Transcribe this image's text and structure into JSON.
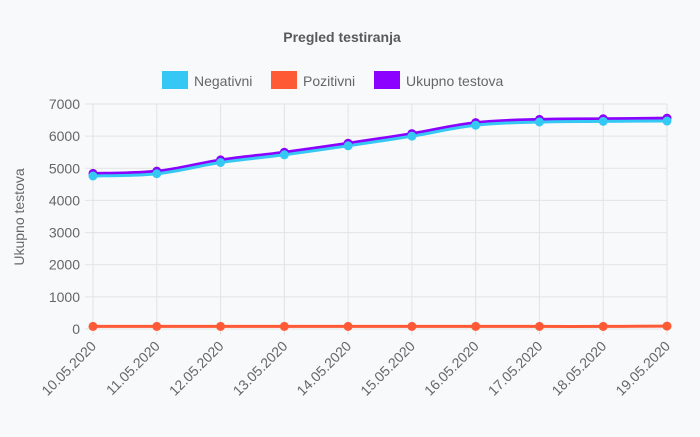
{
  "chart_data": {
    "type": "line",
    "title": "Pregled testiranja",
    "ylabel": "Ukupno testova",
    "xlabel": "",
    "categories": [
      "10.05.2020",
      "11.05.2020",
      "12.05.2020",
      "13.05.2020",
      "14.05.2020",
      "15.05.2020",
      "16.05.2020",
      "17.05.2020",
      "18.05.2020",
      "19.05.2020"
    ],
    "ylim": [
      0,
      7000
    ],
    "yticks": [
      "7000",
      "6000",
      "5000",
      "4000",
      "3000",
      "2000",
      "1000",
      "0"
    ],
    "grid": true,
    "legend_position": "top",
    "series": [
      {
        "name": "Negativni",
        "color": "#36c8f5",
        "values": [
          4760,
          4830,
          5180,
          5420,
          5700,
          6000,
          6340,
          6440,
          6460,
          6470
        ]
      },
      {
        "name": "Pozitivni",
        "color": "#ff5a36",
        "values": [
          80,
          80,
          80,
          80,
          80,
          80,
          80,
          80,
          80,
          90
        ]
      },
      {
        "name": "Ukupno testova",
        "color": "#8b00ff",
        "values": [
          4840,
          4910,
          5260,
          5500,
          5780,
          6080,
          6420,
          6520,
          6540,
          6560
        ]
      }
    ]
  }
}
